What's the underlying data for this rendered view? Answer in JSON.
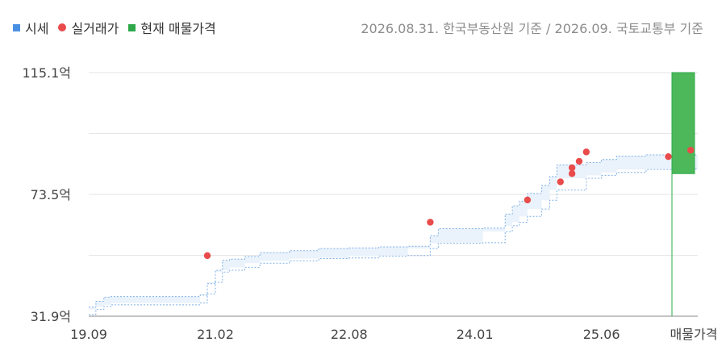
{
  "legend": {
    "items": [
      {
        "label": "시세",
        "shape": "square",
        "color": "#4a90e2"
      },
      {
        "label": "실거래가",
        "shape": "dot",
        "color": "#e94b4b"
      },
      {
        "label": "현재 매물가격",
        "shape": "square",
        "color": "#2ea84a"
      }
    ]
  },
  "source_note": "2026.08.31. 한국부동산원 기준 / 2026.09. 국토교통부 기준",
  "colors": {
    "band_fill": "#eaf2fb",
    "band_stroke": "#7fb0e8",
    "dot": "#e94b4b",
    "listing_fill": "#4cb85a",
    "listing_stroke": "#2ea84a",
    "grid": "#e6e6e6",
    "axis": "#888888"
  },
  "chart_data": {
    "type": "area",
    "title": "",
    "xlabel": "",
    "ylabel": "",
    "y_unit": "억",
    "ylim": [
      31.9,
      115.1
    ],
    "y_ticks": [
      31.9,
      73.5,
      115.1
    ],
    "y_tick_labels": [
      "31.9억",
      "73.5억",
      "115.1억"
    ],
    "xlim": [
      2019.75,
      2026.58
    ],
    "x_ticks": [
      2019.75,
      2021.17,
      2022.67,
      2024.08,
      2025.5
    ],
    "x_tick_labels": [
      "19.09",
      "21.02",
      "22.08",
      "24.01",
      "25.06"
    ],
    "listing_label": "매물가격",
    "series": [
      {
        "name": "시세",
        "type": "band",
        "x": [
          2019.75,
          2019.83,
          2019.92,
          2020.0,
          2021.0,
          2021.08,
          2021.17,
          2021.25,
          2021.33,
          2021.5,
          2021.67,
          2022.0,
          2022.33,
          2022.67,
          2023.0,
          2023.33,
          2023.58,
          2023.67,
          2024.17,
          2024.42,
          2024.5,
          2024.58,
          2024.67,
          2024.83,
          2024.92,
          2025.0,
          2025.33,
          2025.5,
          2025.67,
          2026.0,
          2026.33,
          2026.58
        ],
        "lower": [
          32.5,
          34.2,
          35.2,
          35.8,
          36.4,
          39.5,
          43.5,
          47.0,
          47.6,
          48.6,
          50.0,
          50.8,
          51.6,
          51.8,
          52.4,
          52.6,
          55.0,
          56.8,
          57.0,
          60.8,
          62.8,
          64.0,
          66.0,
          68.5,
          71.5,
          75.0,
          79.0,
          80.0,
          81.0,
          82.0,
          82.2,
          82.2
        ],
        "upper": [
          35.0,
          37.0,
          38.4,
          38.6,
          39.1,
          43.0,
          47.6,
          51.0,
          51.4,
          52.3,
          53.6,
          54.3,
          55.0,
          55.2,
          55.6,
          55.8,
          59.4,
          61.8,
          62.0,
          66.8,
          69.6,
          71.2,
          73.8,
          76.6,
          79.6,
          83.6,
          84.4,
          85.4,
          86.6,
          87.0,
          87.0,
          87.0
        ]
      },
      {
        "name": "실거래가",
        "type": "scatter",
        "x": [
          2021.08,
          2023.58,
          2024.67,
          2025.04,
          2025.17,
          2025.17,
          2025.25,
          2025.33,
          2026.25,
          2026.5
        ],
        "y": [
          52.6,
          64.0,
          71.6,
          77.8,
          80.6,
          82.6,
          84.8,
          88.0,
          86.4,
          88.6
        ]
      }
    ],
    "listing_range": {
      "low": 80.6,
      "high": 115.1
    },
    "grid": true,
    "legend_position": "top-left"
  }
}
